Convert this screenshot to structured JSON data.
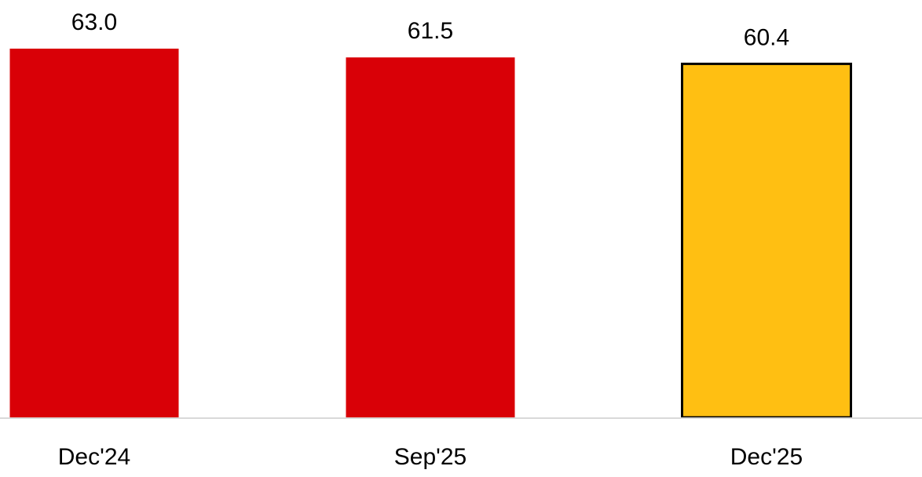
{
  "chart_data": {
    "type": "bar",
    "categories": [
      "Dec'24",
      "Sep'25",
      "Dec'25"
    ],
    "values": [
      63.0,
      61.5,
      60.4
    ],
    "value_labels": [
      "63.0",
      "61.5",
      "60.4"
    ],
    "colors": [
      "#d90007",
      "#d90007",
      "#ffbf12"
    ],
    "edgecolors": [
      null,
      null,
      "#000000"
    ],
    "ylim": [
      0,
      63
    ]
  }
}
